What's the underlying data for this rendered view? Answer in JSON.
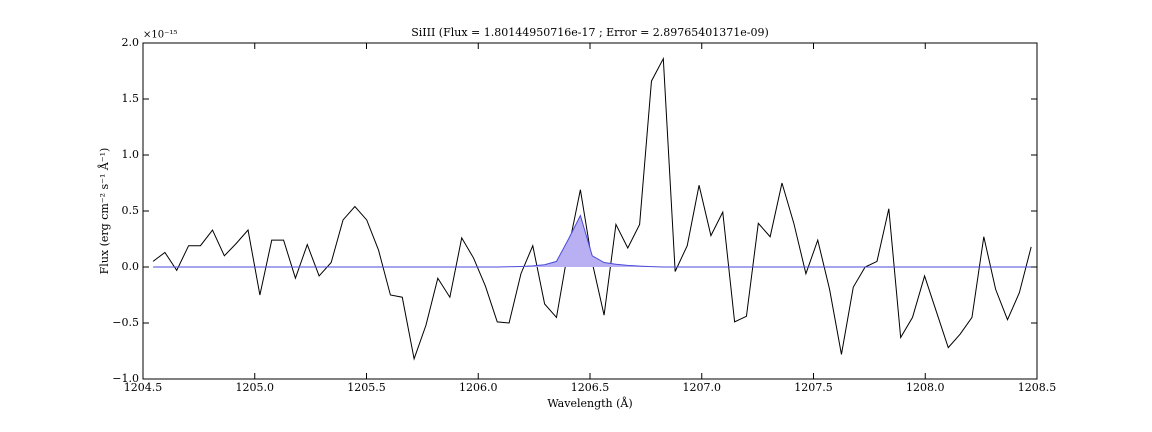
{
  "chart_data": {
    "type": "line",
    "title": "SiIII (Flux = 1.80144950716e-17 ; Error = 2.89765401371e-09)",
    "x_label": "Wavelength (Å)",
    "y_label": "Flux (erg cm⁻² s⁻¹ Å⁻¹)",
    "y_offset_label": "×10⁻¹⁵",
    "x": [
      1204.545,
      1204.598,
      1204.651,
      1204.704,
      1204.757,
      1204.811,
      1204.864,
      1204.917,
      1204.97,
      1205.023,
      1205.076,
      1205.129,
      1205.182,
      1205.235,
      1205.288,
      1205.342,
      1205.395,
      1205.448,
      1205.501,
      1205.554,
      1205.607,
      1205.66,
      1205.713,
      1205.766,
      1205.819,
      1205.873,
      1205.926,
      1205.979,
      1206.032,
      1206.085,
      1206.138,
      1206.191,
      1206.244,
      1206.297,
      1206.35,
      1206.404,
      1206.457,
      1206.51,
      1206.563,
      1206.616,
      1206.669,
      1206.722,
      1206.775,
      1206.828,
      1206.881,
      1206.935,
      1206.988,
      1207.041,
      1207.094,
      1207.147,
      1207.2,
      1207.253,
      1207.306,
      1207.359,
      1207.412,
      1207.466,
      1207.519,
      1207.572,
      1207.625,
      1207.678,
      1207.731,
      1207.784,
      1207.837,
      1207.89,
      1207.943,
      1207.997,
      1208.05,
      1208.103,
      1208.156,
      1208.209,
      1208.262,
      1208.315,
      1208.368,
      1208.421,
      1208.474
    ],
    "series": [
      {
        "color": "#000000",
        "values": [
          0.05,
          0.13,
          -0.03,
          0.19,
          0.19,
          0.33,
          0.1,
          0.21,
          0.33,
          -0.25,
          0.24,
          0.24,
          -0.1,
          0.2,
          -0.08,
          0.04,
          0.42,
          0.54,
          0.42,
          0.15,
          -0.25,
          -0.27,
          -0.82,
          -0.52,
          -0.1,
          -0.27,
          0.26,
          0.08,
          -0.17,
          -0.49,
          -0.5,
          -0.06,
          0.19,
          -0.33,
          -0.45,
          0.17,
          0.69,
          0.04,
          -0.43,
          0.38,
          0.17,
          0.38,
          1.66,
          1.86,
          -0.04,
          0.19,
          0.73,
          0.28,
          0.49,
          -0.49,
          -0.44,
          0.39,
          0.27,
          0.75,
          0.39,
          -0.06,
          0.24,
          -0.2,
          -0.78,
          -0.18,
          0.0,
          0.05,
          0.52,
          -0.63,
          -0.45,
          -0.08,
          -0.4,
          -0.72,
          -0.6,
          -0.45,
          0.27,
          -0.2,
          -0.47,
          -0.23,
          0.18
        ]
      },
      {
        "color": "#4b4bdc",
        "fill": "#b8b0f2",
        "values": [
          0,
          0,
          0,
          0,
          0,
          0,
          0,
          0,
          0,
          0,
          0,
          0,
          0,
          0,
          0,
          0,
          0,
          0,
          0,
          0,
          0,
          0,
          0,
          0,
          0,
          0,
          0,
          0,
          0,
          0,
          0.002,
          0.005,
          0.01,
          0.02,
          0.05,
          0.25,
          0.46,
          0.1,
          0.04,
          0.025,
          0.015,
          0.008,
          0.003,
          0,
          0,
          0,
          0,
          0,
          0,
          0,
          0,
          0,
          0,
          0,
          0,
          0,
          0,
          0,
          0,
          0,
          0,
          0,
          0,
          0,
          0,
          0,
          0,
          0,
          0,
          0,
          0,
          0,
          0,
          0,
          0
        ]
      }
    ],
    "xlim": [
      1204.5,
      1208.5
    ],
    "ylim": [
      -1.0,
      2.0
    ],
    "xticks": [
      1204.5,
      {
        "value": 1205,
        "label": "1205.0"
      },
      1205.5,
      {
        "value": 1206,
        "label": "1206.0"
      },
      1206.5,
      {
        "value": 1207,
        "label": "1207.0"
      },
      1207.5,
      {
        "value": 1208,
        "label": "1208.0"
      },
      1208.5
    ],
    "yticks": [
      {
        "value": -1,
        "label": "−1.0"
      },
      {
        "value": -0.5,
        "label": "−0.5"
      },
      {
        "value": 0,
        "label": "0.0"
      },
      0.5,
      {
        "value": 1,
        "label": "1.0"
      },
      1.5,
      {
        "value": 2,
        "label": "2.0"
      }
    ],
    "grid": false
  }
}
